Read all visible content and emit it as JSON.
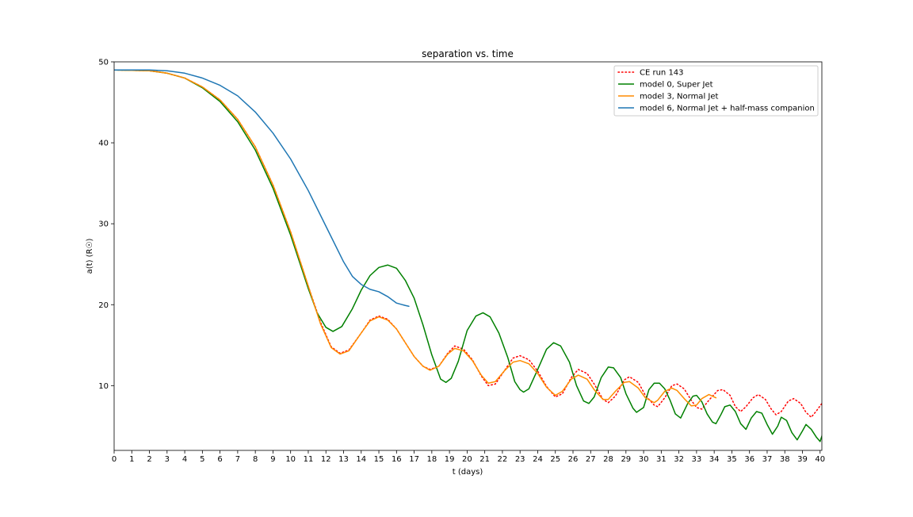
{
  "chart_data": {
    "type": "line",
    "title": "separation vs. time",
    "xlabel": "t (days)",
    "ylabel": "a(t) (R☉)",
    "xlim": [
      0,
      40.1
    ],
    "ylim": [
      2,
      50
    ],
    "x_ticks": [
      0,
      1,
      2,
      3,
      4,
      5,
      6,
      7,
      8,
      9,
      10,
      11,
      12,
      13,
      14,
      15,
      16,
      17,
      18,
      19,
      20,
      21,
      22,
      23,
      24,
      25,
      26,
      27,
      28,
      29,
      30,
      31,
      32,
      33,
      34,
      35,
      36,
      37,
      38,
      39,
      40
    ],
    "y_ticks": [
      10,
      20,
      30,
      40,
      50
    ],
    "grid": false,
    "legend_position": "top-right",
    "series": [
      {
        "name": "CE run 143",
        "color": "#ff0000",
        "style": "dotted",
        "points": [
          [
            0,
            49
          ],
          [
            2,
            48.9
          ],
          [
            3,
            48.6
          ],
          [
            4,
            48
          ],
          [
            5,
            46.9
          ],
          [
            6,
            45.3
          ],
          [
            7,
            42.9
          ],
          [
            8,
            39.5
          ],
          [
            9,
            34.8
          ],
          [
            10,
            29
          ],
          [
            11,
            22.3
          ],
          [
            11.7,
            17.8
          ],
          [
            12.3,
            14.8
          ],
          [
            12.8,
            14
          ],
          [
            13.3,
            14.4
          ],
          [
            14,
            16.5
          ],
          [
            14.5,
            18.1
          ],
          [
            15,
            18.6
          ],
          [
            15.5,
            18.2
          ],
          [
            16,
            17
          ],
          [
            16.5,
            15.3
          ],
          [
            17,
            13.6
          ],
          [
            17.5,
            12.4
          ],
          [
            17.9,
            12
          ],
          [
            18.4,
            12.4
          ],
          [
            18.9,
            14
          ],
          [
            19.3,
            14.9
          ],
          [
            19.8,
            14.5
          ],
          [
            20.3,
            13.2
          ],
          [
            20.8,
            11.2
          ],
          [
            21.2,
            10
          ],
          [
            21.6,
            10.2
          ],
          [
            22.1,
            11.8
          ],
          [
            22.6,
            13.4
          ],
          [
            23,
            13.7
          ],
          [
            23.5,
            13.2
          ],
          [
            24,
            11.8
          ],
          [
            24.5,
            9.9
          ],
          [
            25,
            8.6
          ],
          [
            25.4,
            9
          ],
          [
            25.9,
            11
          ],
          [
            26.3,
            12
          ],
          [
            26.8,
            11.5
          ],
          [
            27.2,
            10.2
          ],
          [
            27.7,
            8.3
          ],
          [
            28,
            7.9
          ],
          [
            28.4,
            8.7
          ],
          [
            28.9,
            10.7
          ],
          [
            29.2,
            11.1
          ],
          [
            29.7,
            10.4
          ],
          [
            30.1,
            8.8
          ],
          [
            30.6,
            7.6
          ],
          [
            30.8,
            7.4
          ],
          [
            31.2,
            8.5
          ],
          [
            31.6,
            10
          ],
          [
            31.9,
            10.2
          ],
          [
            32.3,
            9.6
          ],
          [
            32.7,
            8.2
          ],
          [
            33,
            7.3
          ],
          [
            33.3,
            7.1
          ],
          [
            33.7,
            8.2
          ],
          [
            34.2,
            9.4
          ],
          [
            34.5,
            9.5
          ],
          [
            34.9,
            8.8
          ],
          [
            35.2,
            7.4
          ],
          [
            35.5,
            6.8
          ],
          [
            35.8,
            7.4
          ],
          [
            36.2,
            8.5
          ],
          [
            36.5,
            8.9
          ],
          [
            36.9,
            8.3
          ],
          [
            37.2,
            7.2
          ],
          [
            37.5,
            6.4
          ],
          [
            37.8,
            6.8
          ],
          [
            38.2,
            8.1
          ],
          [
            38.5,
            8.4
          ],
          [
            38.9,
            7.8
          ],
          [
            39.2,
            6.7
          ],
          [
            39.5,
            6.1
          ],
          [
            39.8,
            6.9
          ],
          [
            40.1,
            7.8
          ]
        ]
      },
      {
        "name": "model 0, Super Jet",
        "color": "#008000",
        "style": "solid",
        "points": [
          [
            0,
            49
          ],
          [
            2,
            48.9
          ],
          [
            3,
            48.6
          ],
          [
            4,
            48
          ],
          [
            5,
            46.8
          ],
          [
            6,
            45.1
          ],
          [
            7,
            42.6
          ],
          [
            8,
            39.1
          ],
          [
            9,
            34.4
          ],
          [
            10,
            28.6
          ],
          [
            11,
            22
          ],
          [
            11.5,
            19
          ],
          [
            12,
            17.2
          ],
          [
            12.4,
            16.7
          ],
          [
            12.9,
            17.3
          ],
          [
            13.5,
            19.5
          ],
          [
            14,
            21.8
          ],
          [
            14.5,
            23.6
          ],
          [
            15,
            24.6
          ],
          [
            15.5,
            24.9
          ],
          [
            16,
            24.5
          ],
          [
            16.5,
            23
          ],
          [
            17,
            20.8
          ],
          [
            17.5,
            17.5
          ],
          [
            18,
            13.8
          ],
          [
            18.5,
            10.8
          ],
          [
            18.8,
            10.4
          ],
          [
            19.1,
            10.9
          ],
          [
            19.5,
            13
          ],
          [
            20,
            16.8
          ],
          [
            20.5,
            18.6
          ],
          [
            20.9,
            19
          ],
          [
            21.3,
            18.5
          ],
          [
            21.8,
            16.5
          ],
          [
            22.3,
            13.5
          ],
          [
            22.7,
            10.5
          ],
          [
            23,
            9.5
          ],
          [
            23.2,
            9.2
          ],
          [
            23.5,
            9.6
          ],
          [
            24,
            12
          ],
          [
            24.5,
            14.5
          ],
          [
            24.9,
            15.3
          ],
          [
            25.3,
            14.9
          ],
          [
            25.8,
            12.9
          ],
          [
            26.2,
            10
          ],
          [
            26.6,
            8.1
          ],
          [
            26.9,
            7.8
          ],
          [
            27.2,
            8.6
          ],
          [
            27.6,
            11
          ],
          [
            28,
            12.3
          ],
          [
            28.3,
            12.2
          ],
          [
            28.7,
            11
          ],
          [
            29,
            9
          ],
          [
            29.4,
            7.2
          ],
          [
            29.6,
            6.7
          ],
          [
            30,
            7.3
          ],
          [
            30.3,
            9.5
          ],
          [
            30.6,
            10.3
          ],
          [
            30.9,
            10.3
          ],
          [
            31.2,
            9.6
          ],
          [
            31.5,
            8.2
          ],
          [
            31.8,
            6.5
          ],
          [
            32.1,
            6
          ],
          [
            32.5,
            7.8
          ],
          [
            32.8,
            8.7
          ],
          [
            33,
            8.8
          ],
          [
            33.3,
            8
          ],
          [
            33.6,
            6.5
          ],
          [
            33.9,
            5.5
          ],
          [
            34.1,
            5.3
          ],
          [
            34.4,
            6.5
          ],
          [
            34.6,
            7.4
          ],
          [
            34.9,
            7.6
          ],
          [
            35.2,
            6.8
          ],
          [
            35.5,
            5.3
          ],
          [
            35.8,
            4.6
          ],
          [
            36.1,
            6
          ],
          [
            36.4,
            6.8
          ],
          [
            36.7,
            6.6
          ],
          [
            37,
            5.2
          ],
          [
            37.3,
            4
          ],
          [
            37.6,
            5
          ],
          [
            37.8,
            6.1
          ],
          [
            38.1,
            5.7
          ],
          [
            38.4,
            4.2
          ],
          [
            38.7,
            3.3
          ],
          [
            39,
            4.4
          ],
          [
            39.2,
            5.2
          ],
          [
            39.5,
            4.6
          ],
          [
            39.8,
            3.6
          ],
          [
            40,
            3.1
          ],
          [
            40.2,
            4.4
          ]
        ]
      },
      {
        "name": "model 3, Normal Jet",
        "color": "#ff8c00",
        "style": "solid",
        "points": [
          [
            0,
            49
          ],
          [
            2,
            48.9
          ],
          [
            3,
            48.6
          ],
          [
            4,
            48
          ],
          [
            5,
            46.9
          ],
          [
            6,
            45.3
          ],
          [
            7,
            42.9
          ],
          [
            8,
            39.5
          ],
          [
            9,
            34.8
          ],
          [
            10,
            29
          ],
          [
            11,
            22.3
          ],
          [
            11.7,
            17.6
          ],
          [
            12.3,
            14.7
          ],
          [
            12.8,
            13.9
          ],
          [
            13.3,
            14.3
          ],
          [
            14,
            16.5
          ],
          [
            14.5,
            18
          ],
          [
            15,
            18.5
          ],
          [
            15.5,
            18.1
          ],
          [
            16,
            17
          ],
          [
            16.5,
            15.3
          ],
          [
            17,
            13.6
          ],
          [
            17.5,
            12.4
          ],
          [
            17.9,
            11.9
          ],
          [
            18.4,
            12.4
          ],
          [
            18.9,
            13.9
          ],
          [
            19.3,
            14.6
          ],
          [
            19.8,
            14.3
          ],
          [
            20.3,
            13.1
          ],
          [
            20.8,
            11.3
          ],
          [
            21.2,
            10.3
          ],
          [
            21.6,
            10.5
          ],
          [
            22.1,
            11.8
          ],
          [
            22.6,
            12.9
          ],
          [
            23,
            13.1
          ],
          [
            23.5,
            12.7
          ],
          [
            24,
            11.5
          ],
          [
            24.5,
            9.8
          ],
          [
            25,
            8.8
          ],
          [
            25.4,
            9.3
          ],
          [
            25.9,
            10.8
          ],
          [
            26.3,
            11.3
          ],
          [
            26.8,
            10.8
          ],
          [
            27.2,
            9.5
          ],
          [
            27.7,
            8.3
          ],
          [
            28,
            8.3
          ],
          [
            28.4,
            9.3
          ],
          [
            28.9,
            10.4
          ],
          [
            29.2,
            10.5
          ],
          [
            29.7,
            9.7
          ],
          [
            30.1,
            8.5
          ],
          [
            30.6,
            7.9
          ],
          [
            30.8,
            8.2
          ],
          [
            31.2,
            9.3
          ],
          [
            31.6,
            9.7
          ],
          [
            31.9,
            9.4
          ],
          [
            32.3,
            8.4
          ],
          [
            32.7,
            7.5
          ],
          [
            33,
            7.6
          ],
          [
            33.3,
            8.4
          ],
          [
            33.7,
            8.9
          ],
          [
            34.1,
            8.5
          ]
        ]
      },
      {
        "name": "model 6, Normal Jet + half-mass companion",
        "color": "#1f77b4",
        "style": "solid",
        "points": [
          [
            0,
            49
          ],
          [
            2,
            49
          ],
          [
            3,
            48.9
          ],
          [
            4,
            48.6
          ],
          [
            5,
            48
          ],
          [
            6,
            47.1
          ],
          [
            7,
            45.8
          ],
          [
            8,
            43.8
          ],
          [
            9,
            41.2
          ],
          [
            10,
            38
          ],
          [
            11,
            34.1
          ],
          [
            12,
            29.7
          ],
          [
            13,
            25.3
          ],
          [
            13.5,
            23.5
          ],
          [
            14,
            22.5
          ],
          [
            14.5,
            21.9
          ],
          [
            15,
            21.6
          ],
          [
            15.5,
            21
          ],
          [
            16,
            20.2
          ],
          [
            16.5,
            19.9
          ],
          [
            16.7,
            19.8
          ]
        ]
      }
    ]
  }
}
